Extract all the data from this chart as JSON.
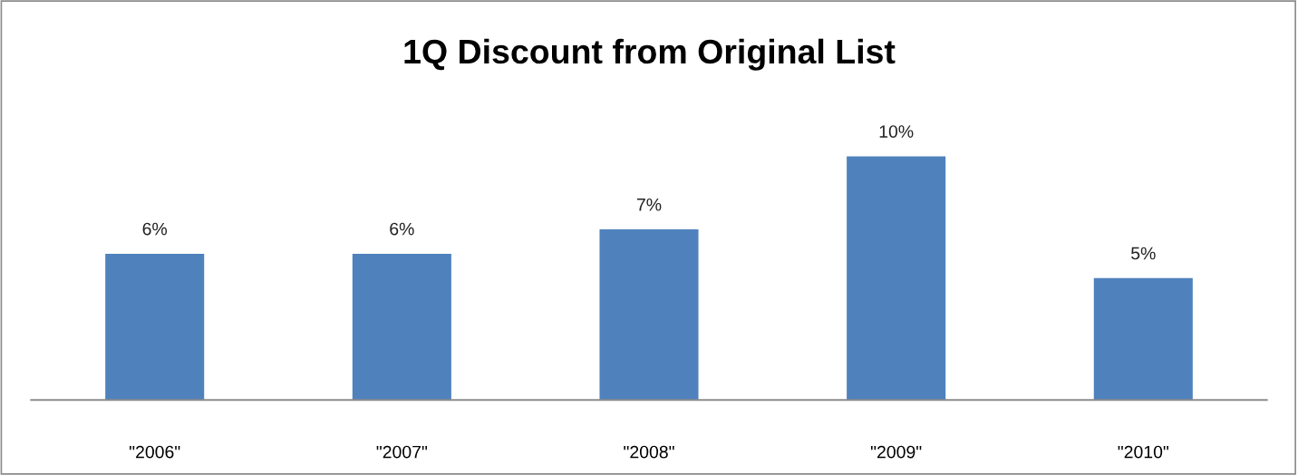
{
  "chart_data": {
    "type": "bar",
    "title": "1Q Discount from Original List",
    "categories": [
      "\"2006\"",
      "\"2007\"",
      "\"2008\"",
      "\"2009\"",
      "\"2010\""
    ],
    "values": [
      6,
      6,
      7,
      10,
      5
    ],
    "value_labels": [
      "6%",
      "6%",
      "7%",
      "10%",
      "5%"
    ],
    "color": "#4f81bd",
    "grid": false,
    "legend": false
  }
}
